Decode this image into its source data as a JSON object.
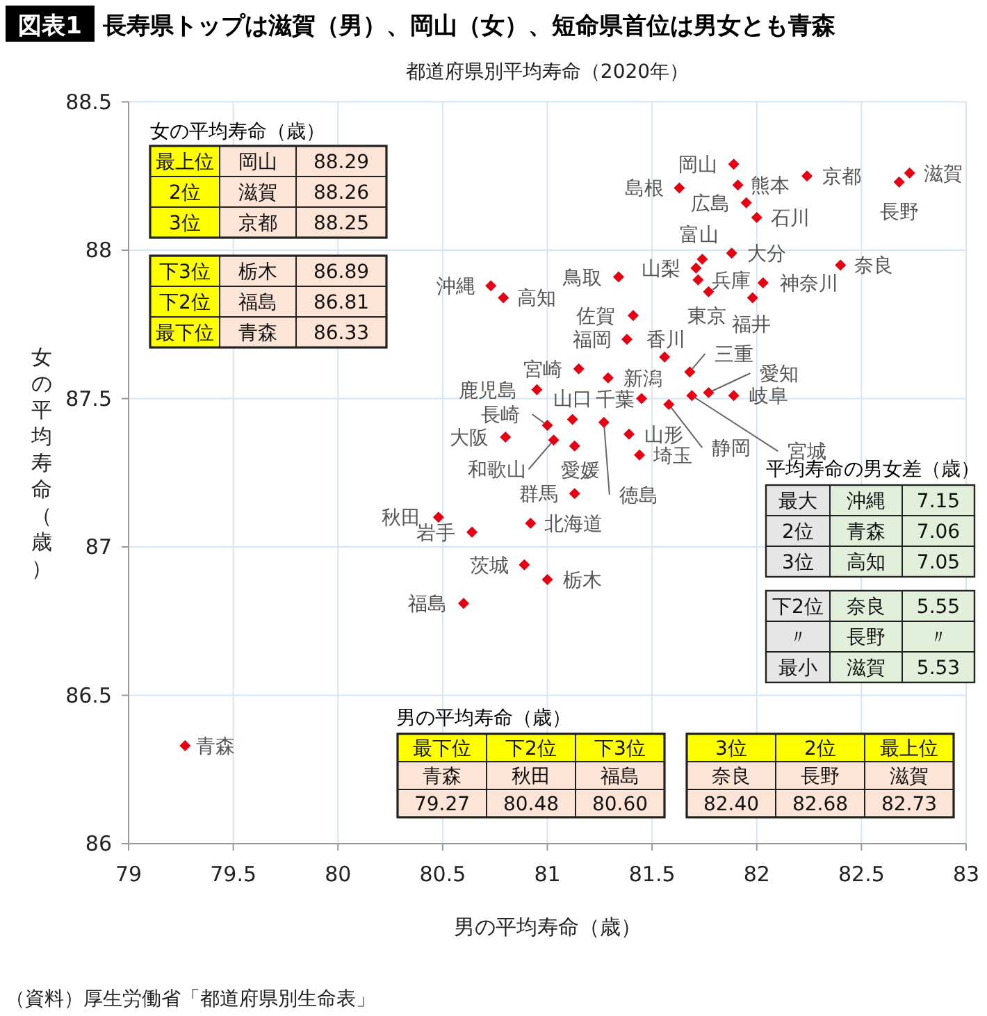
{
  "chart_data": {
    "type": "scatter",
    "title": "長寿県トップは滋賀（男）、岡山（女）、短命県首位は男女とも青森",
    "subtitle": "都道府県別平均寿命（2020年）",
    "xlabel": "男の平均寿命（歳）",
    "ylabel": "女の平均寿命（歳）",
    "xlim": [
      79,
      83
    ],
    "ylim": [
      86,
      88.5
    ],
    "xticks": [
      79,
      79.5,
      80,
      80.5,
      81,
      81.5,
      82,
      82.5,
      83
    ],
    "yticks": [
      86,
      86.5,
      87,
      87.5,
      88,
      88.5
    ],
    "grid": true,
    "marker": "diamond",
    "color": "#e60012",
    "x": [
      81.89,
      81.91,
      81.95,
      82.0,
      81.63,
      82.24,
      82.73,
      82.68,
      82.4,
      81.74,
      81.71,
      81.72,
      81.77,
      81.88,
      82.03,
      81.98,
      81.34,
      81.41,
      81.38,
      81.56,
      81.68,
      81.77,
      81.89,
      81.69,
      81.58,
      81.45,
      81.29,
      81.15,
      80.95,
      81.12,
      81.27,
      81.0,
      81.03,
      81.13,
      80.8,
      81.39,
      81.44,
      81.13,
      80.48,
      80.64,
      80.92,
      80.89,
      81.0,
      80.6,
      80.73,
      80.79,
      79.27
    ],
    "values": [
      88.29,
      88.22,
      88.16,
      88.11,
      88.21,
      88.25,
      88.26,
      88.23,
      87.95,
      87.97,
      87.94,
      87.9,
      87.86,
      87.99,
      87.89,
      87.84,
      87.91,
      87.78,
      87.7,
      87.64,
      87.59,
      87.52,
      87.51,
      87.51,
      87.48,
      87.5,
      87.57,
      87.6,
      87.53,
      87.43,
      87.42,
      87.41,
      87.36,
      87.34,
      87.37,
      87.38,
      87.31,
      87.18,
      87.1,
      87.05,
      87.08,
      86.94,
      86.89,
      86.81,
      87.88,
      87.84,
      86.33
    ],
    "annotations": [
      "図表1",
      "（資料）厚生労働省「都道府県別生命表」",
      "女の平均寿命（歳）",
      "最上位",
      "岡山",
      "88.29",
      "2位",
      "滋賀",
      "88.26",
      "3位",
      "京都",
      "88.25",
      "下3位",
      "栃木",
      "86.89",
      "下2位",
      "福島",
      "86.81",
      "最下位",
      "青森",
      "86.33",
      "男の平均寿命（歳）",
      "最下位",
      "下2位",
      "下3位",
      "青森",
      "秋田",
      "福島",
      "79.27",
      "80.48",
      "80.60",
      "3位",
      "2位",
      "最上位",
      "奈良",
      "長野",
      "滋賀",
      "82.40",
      "82.68",
      "82.73",
      "平均寿命の男女差（歳）",
      "最大",
      "沖縄",
      "7.15",
      "2位",
      "青森",
      "7.06",
      "3位",
      "高知",
      "7.05",
      "下2位",
      "奈良",
      "5.55",
      "〃",
      "長野",
      "〃",
      "最小",
      "滋賀",
      "5.53",
      {
        "text": "岡山",
        "x": 81.89,
        "y": 88.29
      },
      {
        "text": "熊本",
        "x": 81.91,
        "y": 88.22
      },
      {
        "text": "広島",
        "x": 81.95,
        "y": 88.16
      },
      {
        "text": "石川",
        "x": 82.0,
        "y": 88.11
      },
      {
        "text": "島根",
        "x": 81.63,
        "y": 88.21
      },
      {
        "text": "京都",
        "x": 82.24,
        "y": 88.25
      },
      {
        "text": "滋賀",
        "x": 82.73,
        "y": 88.26
      },
      {
        "text": "長野",
        "x": 82.68,
        "y": 88.23
      },
      {
        "text": "奈良",
        "x": 82.4,
        "y": 87.95
      },
      {
        "text": "富山",
        "x": 81.74,
        "y": 87.97
      },
      {
        "text": "山梨",
        "x": 81.71,
        "y": 87.94
      },
      {
        "text": "兵庫",
        "x": 81.72,
        "y": 87.9
      },
      {
        "text": "東京",
        "x": 81.77,
        "y": 87.86
      },
      {
        "text": "大分",
        "x": 81.88,
        "y": 87.99
      },
      {
        "text": "神奈川",
        "x": 82.03,
        "y": 87.89
      },
      {
        "text": "福井",
        "x": 81.98,
        "y": 87.84
      },
      {
        "text": "鳥取",
        "x": 81.34,
        "y": 87.91
      },
      {
        "text": "佐賀",
        "x": 81.41,
        "y": 87.78
      },
      {
        "text": "福岡",
        "x": 81.38,
        "y": 87.7
      },
      {
        "text": "香川",
        "x": 81.56,
        "y": 87.64
      },
      {
        "text": "三重",
        "x": 81.68,
        "y": 87.59
      },
      {
        "text": "愛知",
        "x": 81.77,
        "y": 87.52
      },
      {
        "text": "岐阜",
        "x": 81.89,
        "y": 87.51
      },
      {
        "text": "宮城",
        "x": 81.69,
        "y": 87.51
      },
      {
        "text": "静岡",
        "x": 81.58,
        "y": 87.48
      },
      {
        "text": "千葉",
        "x": 81.45,
        "y": 87.5
      },
      {
        "text": "新潟",
        "x": 81.29,
        "y": 87.57
      },
      {
        "text": "宮崎",
        "x": 81.15,
        "y": 87.6
      },
      {
        "text": "鹿児島",
        "x": 80.95,
        "y": 87.53
      },
      {
        "text": "山口",
        "x": 81.12,
        "y": 87.43
      },
      {
        "text": "徳島",
        "x": 81.27,
        "y": 87.42
      },
      {
        "text": "長崎",
        "x": 81.0,
        "y": 87.41
      },
      {
        "text": "和歌山",
        "x": 81.03,
        "y": 87.36
      },
      {
        "text": "愛媛",
        "x": 81.13,
        "y": 87.34
      },
      {
        "text": "大阪",
        "x": 80.8,
        "y": 87.37
      },
      {
        "text": "山形",
        "x": 81.39,
        "y": 87.38
      },
      {
        "text": "埼玉",
        "x": 81.44,
        "y": 87.31
      },
      {
        "text": "群馬",
        "x": 81.13,
        "y": 87.18
      },
      {
        "text": "秋田",
        "x": 80.48,
        "y": 87.1
      },
      {
        "text": "岩手",
        "x": 80.64,
        "y": 87.05
      },
      {
        "text": "北海道",
        "x": 80.92,
        "y": 87.08
      },
      {
        "text": "茨城",
        "x": 80.89,
        "y": 86.94
      },
      {
        "text": "栃木",
        "x": 81.0,
        "y": 86.89
      },
      {
        "text": "福島",
        "x": 80.6,
        "y": 86.81
      },
      {
        "text": "沖縄",
        "x": 80.73,
        "y": 87.88
      },
      {
        "text": "高知",
        "x": 80.79,
        "y": 87.84
      },
      {
        "text": "青森",
        "x": 79.27,
        "y": 86.33
      }
    ]
  }
}
